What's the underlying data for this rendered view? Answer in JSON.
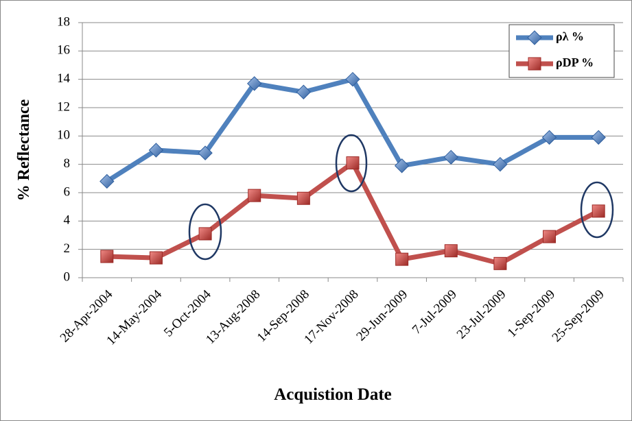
{
  "chart_data": {
    "type": "line",
    "x_label": "Acquistion Date",
    "y_label": "% Reflectance",
    "categories": [
      "28-Apr-2004",
      "14-May-2004",
      "5-Oct-2004",
      "13-Aug-2008",
      "14-Sep-2008",
      "17-Nov-2008",
      "29-Jun-2009",
      "7-Jul-2009",
      "23-Jul-2009",
      "1-Sep-2009",
      "25-Sep-2009"
    ],
    "series": [
      {
        "name": "ρλ %",
        "color": "#4f81bd",
        "values": [
          6.8,
          9.0,
          8.8,
          13.7,
          13.1,
          14.0,
          7.9,
          8.5,
          8.0,
          9.9,
          9.9
        ]
      },
      {
        "name": "ρDP %",
        "color": "#c0504d",
        "values": [
          1.5,
          1.4,
          3.1,
          5.8,
          5.6,
          8.1,
          1.3,
          1.9,
          1.0,
          2.9,
          4.7
        ]
      }
    ],
    "ylim": [
      0,
      18
    ],
    "yticks": [
      0,
      2,
      4,
      6,
      8,
      10,
      12,
      14,
      16,
      18
    ],
    "grid": true,
    "legend": "top-right"
  }
}
